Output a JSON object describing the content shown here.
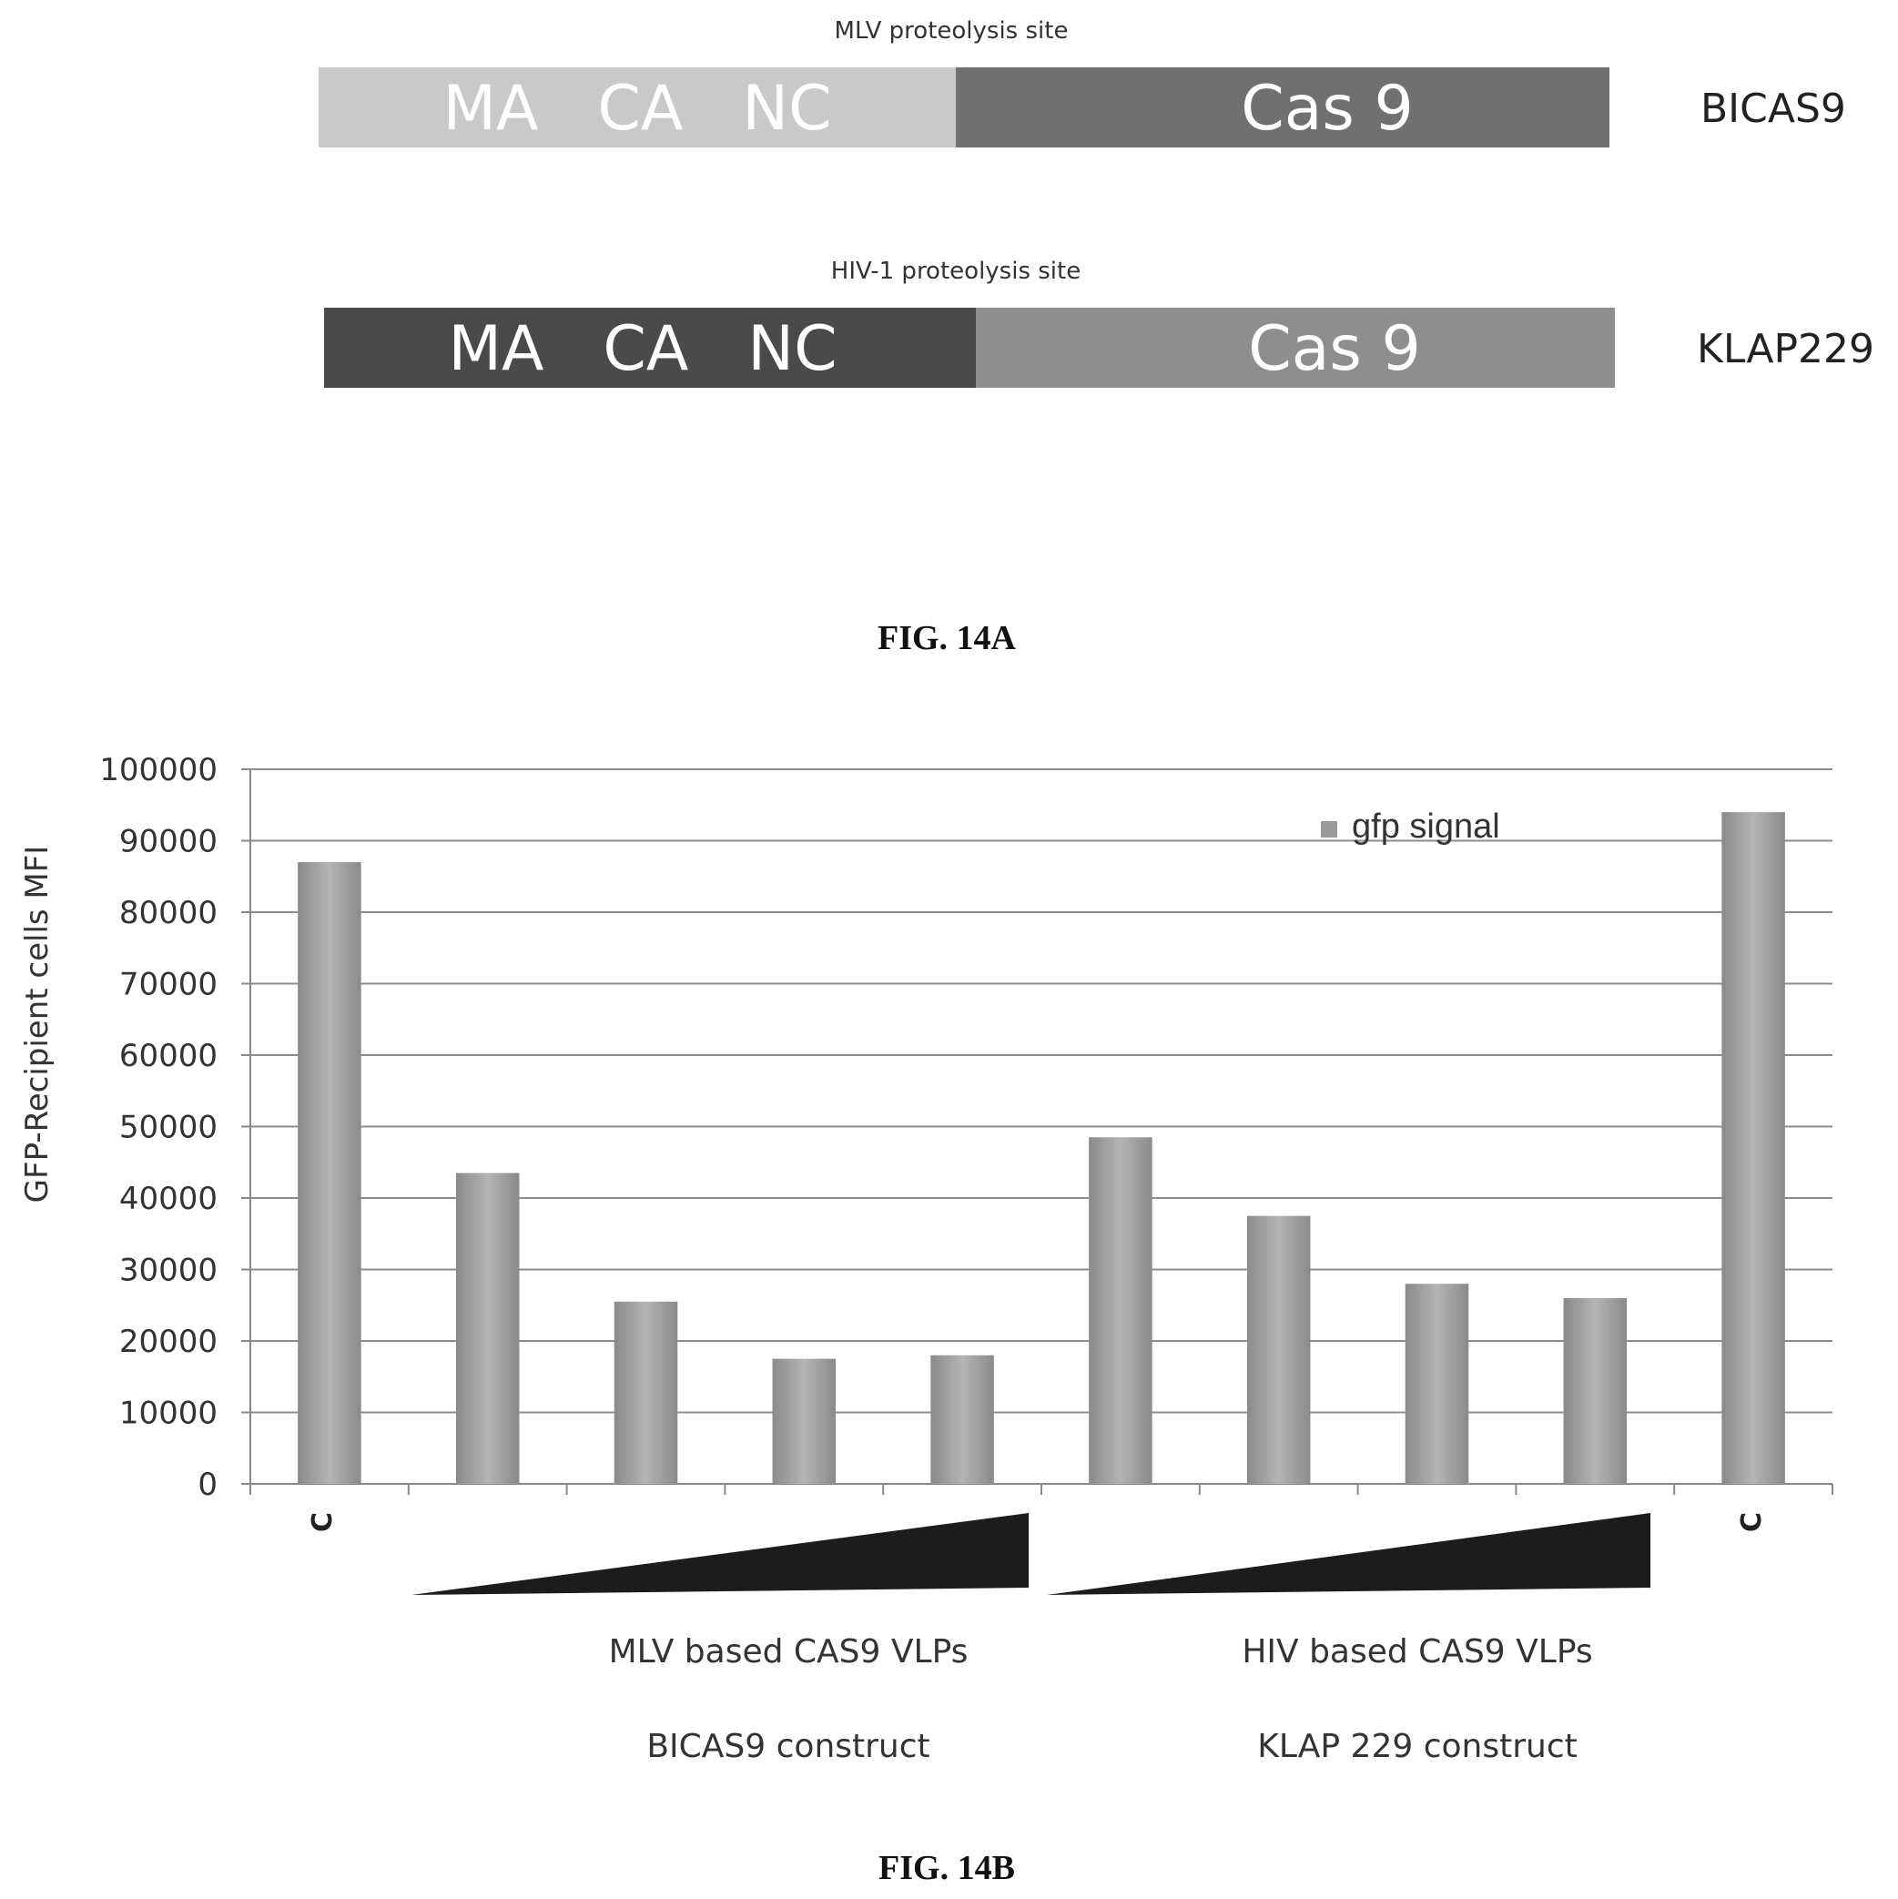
{
  "fig14a": {
    "constructs": [
      {
        "site_label": "MLV proteolysis site",
        "gag_label": "MA   CA   NC",
        "cas_label": "Cas 9",
        "name": "BICAS9",
        "gag_color": "#c9c9c9",
        "cas_color": "#707070"
      },
      {
        "site_label": "HIV-1 proteolysis site",
        "gag_label": "MA   CA   NC",
        "cas_label": "Cas 9",
        "name": "KLAP229",
        "gag_color": "#4a4a4a",
        "cas_color": "#8e8e8e"
      }
    ],
    "caption": "FIG. 14A"
  },
  "fig14b": {
    "caption": "FIG. 14B",
    "control_label": "C",
    "groups": [
      {
        "line1": "MLV based CAS9 VLPs",
        "line2": "BICAS9 construct"
      },
      {
        "line1": "HIV based CAS9 VLPs",
        "line2": "KLAP 229 construct"
      }
    ]
  },
  "chart_data": {
    "type": "bar",
    "ylabel": "GFP-Recipient cells MFI",
    "xlabel": "",
    "ylim": [
      0,
      100000
    ],
    "yticks": [
      0,
      10000,
      20000,
      30000,
      40000,
      50000,
      60000,
      70000,
      80000,
      90000,
      100000
    ],
    "legend": {
      "entries": [
        "gfp signal"
      ],
      "position": "top-right"
    },
    "grid": true,
    "categories": [
      "C",
      "",
      "",
      "",
      "",
      "",
      "",
      "",
      "",
      "C"
    ],
    "series": [
      {
        "name": "gfp signal",
        "color": "#9a9a9a",
        "values": [
          87000,
          43500,
          25500,
          17500,
          18000,
          48500,
          37500,
          28000,
          26000,
          94000
        ]
      }
    ]
  }
}
